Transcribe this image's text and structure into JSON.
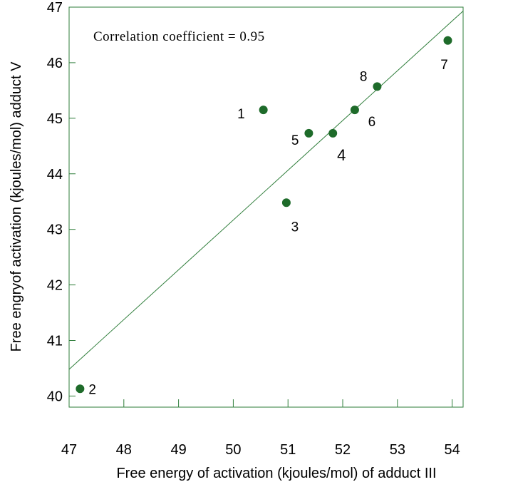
{
  "chart_data": {
    "type": "scatter",
    "xlabel": "Free energy of activation (kjoules/mol) of adduct III",
    "ylabel": "Free engryof activation (kjoules/mol) adduct V",
    "annotation": "Correlation coefficient = 0.95",
    "xlim": [
      47,
      54.2
    ],
    "ylim": [
      39.8,
      47
    ],
    "x_ticks": [
      47,
      48,
      49,
      50,
      51,
      52,
      53,
      54
    ],
    "y_ticks": [
      40,
      41,
      42,
      43,
      44,
      45,
      46,
      47
    ],
    "x_tick_labels": [
      "47",
      "48",
      "49",
      "50",
      "51",
      "52",
      "53",
      "54"
    ],
    "y_tick_labels": [
      "40",
      "41",
      "42",
      "43",
      "44",
      "45",
      "46",
      "47"
    ],
    "grid": false,
    "colors": {
      "point": "#1e6b2a",
      "fit_line": "#2e7d3a",
      "frame": "#2e7d3a"
    },
    "fit_line": {
      "x": [
        47,
        54.2
      ],
      "y": [
        40.48,
        46.93
      ]
    },
    "points": [
      {
        "label": "1",
        "x": 50.55,
        "y": 45.15
      },
      {
        "label": "2",
        "x": 47.2,
        "y": 40.13
      },
      {
        "label": "3",
        "x": 50.97,
        "y": 43.48
      },
      {
        "label": "4",
        "x": 51.82,
        "y": 44.73
      },
      {
        "label": "5",
        "x": 51.38,
        "y": 44.73
      },
      {
        "label": "6",
        "x": 52.22,
        "y": 45.15
      },
      {
        "label": "7",
        "x": 53.92,
        "y": 46.4
      },
      {
        "label": "8",
        "x": 52.63,
        "y": 45.57
      }
    ]
  }
}
